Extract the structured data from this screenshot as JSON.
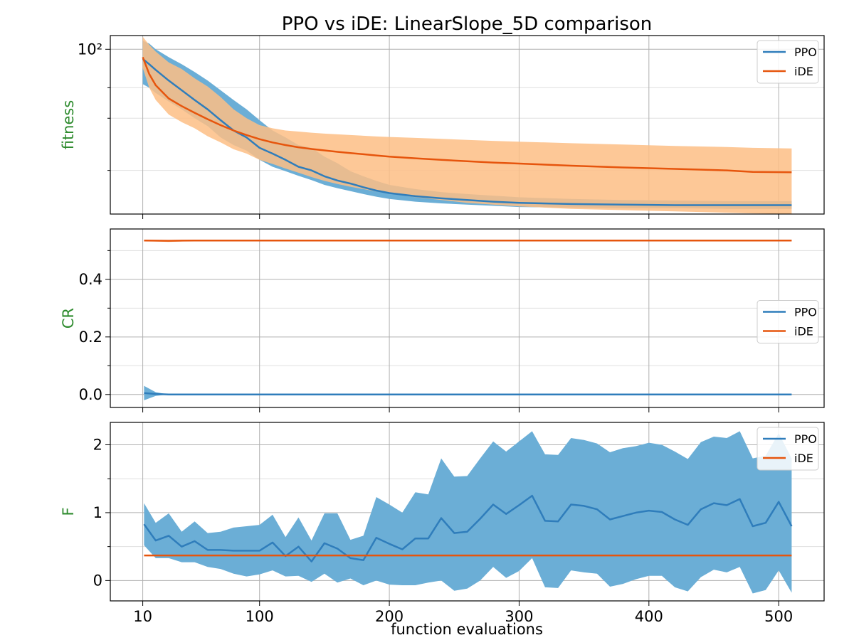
{
  "figure": {
    "title": "PPO vs iDE: LinearSlope_5D comparison",
    "xlabel": "function evaluations",
    "x_ticks": [
      10,
      100,
      200,
      300,
      400,
      500
    ],
    "xlim": [
      -15,
      535
    ]
  },
  "colors": {
    "ppo_line": "#2f7dbb",
    "ppo_band": "#6baed6",
    "ide_line": "#e6550d",
    "ide_band": "#fdbe85",
    "ylabel": "#2e8b2e",
    "grid_major": "#b0b0b0",
    "grid_minor": "#e0e0e0"
  },
  "chart_data": [
    {
      "type": "line",
      "ylabel": "fitness",
      "yscale": "log",
      "ylim": [
        11.2,
        120
      ],
      "y_ticks": [
        100
      ],
      "y_tick_labels": [
        "10²"
      ],
      "y_minor_ticks": [
        20,
        40,
        60
      ],
      "legend": "top-right",
      "series": [
        {
          "name": "PPO",
          "x": [
            10,
            15,
            20,
            30,
            40,
            50,
            60,
            70,
            80,
            90,
            100,
            110,
            120,
            130,
            140,
            150,
            160,
            170,
            180,
            190,
            200,
            220,
            240,
            260,
            280,
            300,
            340,
            380,
            420,
            460,
            510
          ],
          "mean": [
            88,
            82,
            76,
            66,
            58,
            51,
            45,
            39,
            34,
            31,
            27,
            25,
            23,
            21,
            20,
            18.5,
            17.5,
            16.8,
            16,
            15.3,
            14.8,
            14.2,
            13.8,
            13.5,
            13.2,
            13,
            12.8,
            12.7,
            12.6,
            12.6,
            12.6
          ],
          "lower": [
            63,
            60,
            56,
            50,
            45,
            40,
            36,
            31,
            28,
            26,
            23,
            21,
            19.8,
            18.6,
            17.6,
            16.5,
            15.8,
            15.2,
            14.6,
            14.1,
            13.7,
            13.2,
            12.9,
            12.7,
            12.5,
            12.3,
            12.2,
            12.1,
            12.1,
            12,
            12
          ],
          "upper": [
            112,
            108,
            100,
            90,
            82,
            74,
            66,
            58,
            51,
            45,
            39,
            34,
            31,
            28,
            27,
            24,
            22,
            19.8,
            18.5,
            17.4,
            16.5,
            15.6,
            15,
            14.6,
            14.3,
            14,
            13.7,
            13.5,
            13.4,
            13.3,
            13.3
          ]
        },
        {
          "name": "iDE",
          "x": [
            10,
            15,
            20,
            30,
            40,
            50,
            60,
            70,
            80,
            90,
            100,
            110,
            120,
            130,
            140,
            150,
            160,
            170,
            180,
            190,
            200,
            220,
            240,
            260,
            280,
            300,
            340,
            380,
            420,
            460,
            480,
            510
          ],
          "mean": [
            90,
            72,
            62,
            52,
            47,
            43,
            39.5,
            36.5,
            34,
            32,
            30.3,
            29,
            28,
            27.2,
            26.6,
            26.1,
            25.6,
            25.2,
            24.8,
            24.4,
            24,
            23.5,
            23,
            22.6,
            22.2,
            21.9,
            21.3,
            20.8,
            20.4,
            20,
            19.6,
            19.5
          ],
          "lower": [
            78,
            60,
            51,
            42,
            38,
            35,
            31.5,
            29,
            26.5,
            25,
            23,
            21.8,
            20.5,
            19.4,
            18.3,
            17.4,
            16.7,
            16.1,
            15.6,
            15.1,
            14.7,
            14,
            13.5,
            13,
            12.7,
            12.4,
            12,
            11.8,
            11.6,
            11.4,
            11.3,
            11.2
          ],
          "upper": [
            118,
            106,
            97,
            84,
            77,
            68,
            61,
            53,
            45,
            40,
            36.5,
            35,
            34,
            33.5,
            33,
            32.6,
            32.3,
            32,
            31.7,
            31.4,
            31.2,
            30.8,
            30.4,
            30,
            29.6,
            29.3,
            28.7,
            28.2,
            27.7,
            27.3,
            27,
            26.8
          ]
        }
      ]
    },
    {
      "type": "line",
      "ylabel": "CR",
      "yscale": "linear",
      "ylim": [
        -0.045,
        0.575
      ],
      "y_ticks": [
        0.0,
        0.2,
        0.4
      ],
      "y_tick_labels": [
        "0.0",
        "0.2",
        "0.4"
      ],
      "y_minor_ticks": [
        0.1,
        0.3,
        0.5
      ],
      "legend": "center-right",
      "series": [
        {
          "name": "PPO",
          "x": [
            11,
            20,
            30,
            510
          ],
          "mean": [
            0.005,
            0.002,
            0.0,
            0.0
          ],
          "lower": [
            -0.02,
            -0.005,
            0.0,
            0.0
          ],
          "upper": [
            0.03,
            0.008,
            0.0,
            0.0
          ]
        },
        {
          "name": "iDE",
          "x": [
            11,
            30,
            50,
            510
          ],
          "mean": [
            0.535,
            0.534,
            0.535,
            0.535
          ],
          "lower": [
            0.533,
            0.53,
            0.533,
            0.533
          ],
          "upper": [
            0.537,
            0.537,
            0.537,
            0.537
          ]
        }
      ]
    },
    {
      "type": "line",
      "ylabel": "F",
      "yscale": "linear",
      "ylim": [
        -0.3,
        2.33
      ],
      "y_ticks": [
        0,
        1,
        2
      ],
      "y_tick_labels": [
        "0",
        "1",
        "2"
      ],
      "y_minor_ticks": [
        0.5,
        1.5
      ],
      "legend": "top-right",
      "series": [
        {
          "name": "PPO",
          "x": [
            11,
            20,
            30,
            40,
            50,
            60,
            70,
            80,
            90,
            100,
            110,
            120,
            130,
            140,
            150,
            160,
            170,
            180,
            190,
            200,
            210,
            220,
            230,
            240,
            250,
            260,
            270,
            280,
            290,
            300,
            310,
            320,
            330,
            340,
            350,
            360,
            370,
            380,
            390,
            400,
            410,
            420,
            430,
            440,
            450,
            460,
            470,
            480,
            490,
            500,
            510
          ],
          "mean": [
            0.83,
            0.59,
            0.66,
            0.5,
            0.58,
            0.45,
            0.45,
            0.44,
            0.44,
            0.44,
            0.56,
            0.36,
            0.5,
            0.28,
            0.55,
            0.47,
            0.33,
            0.3,
            0.63,
            0.54,
            0.46,
            0.62,
            0.62,
            0.92,
            0.7,
            0.72,
            0.91,
            1.12,
            0.98,
            1.11,
            1.25,
            0.88,
            0.87,
            1.12,
            1.1,
            1.05,
            0.9,
            0.95,
            1.0,
            1.03,
            1.01,
            0.9,
            0.82,
            1.05,
            1.14,
            1.11,
            1.2,
            0.8,
            0.85,
            1.16,
            0.8
          ],
          "lower": [
            0.52,
            0.33,
            0.33,
            0.27,
            0.27,
            0.2,
            0.17,
            0.1,
            0.06,
            0.09,
            0.15,
            0.06,
            0.07,
            -0.02,
            0.1,
            -0.03,
            0.03,
            -0.07,
            0.0,
            -0.06,
            -0.07,
            -0.07,
            -0.03,
            0.0,
            -0.15,
            -0.12,
            0.0,
            0.2,
            0.04,
            0.14,
            0.33,
            -0.1,
            -0.11,
            0.15,
            0.12,
            0.1,
            -0.09,
            -0.05,
            0.02,
            0.07,
            0.07,
            -0.1,
            -0.16,
            0.05,
            0.16,
            0.12,
            0.2,
            -0.19,
            -0.14,
            0.15,
            -0.18
          ],
          "upper": [
            1.14,
            0.85,
            0.99,
            0.72,
            0.87,
            0.7,
            0.72,
            0.78,
            0.8,
            0.82,
            0.97,
            0.64,
            0.93,
            0.59,
            0.99,
            0.99,
            0.6,
            0.66,
            1.23,
            1.12,
            1.0,
            1.3,
            1.27,
            1.8,
            1.53,
            1.54,
            1.8,
            2.05,
            1.9,
            2.05,
            2.2,
            1.86,
            1.85,
            2.1,
            2.07,
            2.02,
            1.89,
            1.95,
            1.98,
            2.03,
            2.0,
            1.9,
            1.79,
            2.04,
            2.12,
            2.1,
            2.2,
            1.8,
            1.84,
            2.17,
            1.8
          ]
        },
        {
          "name": "iDE",
          "x": [
            11,
            510
          ],
          "mean": [
            0.37,
            0.37
          ],
          "lower": [
            0.37,
            0.37
          ],
          "upper": [
            0.37,
            0.37
          ]
        }
      ]
    }
  ]
}
